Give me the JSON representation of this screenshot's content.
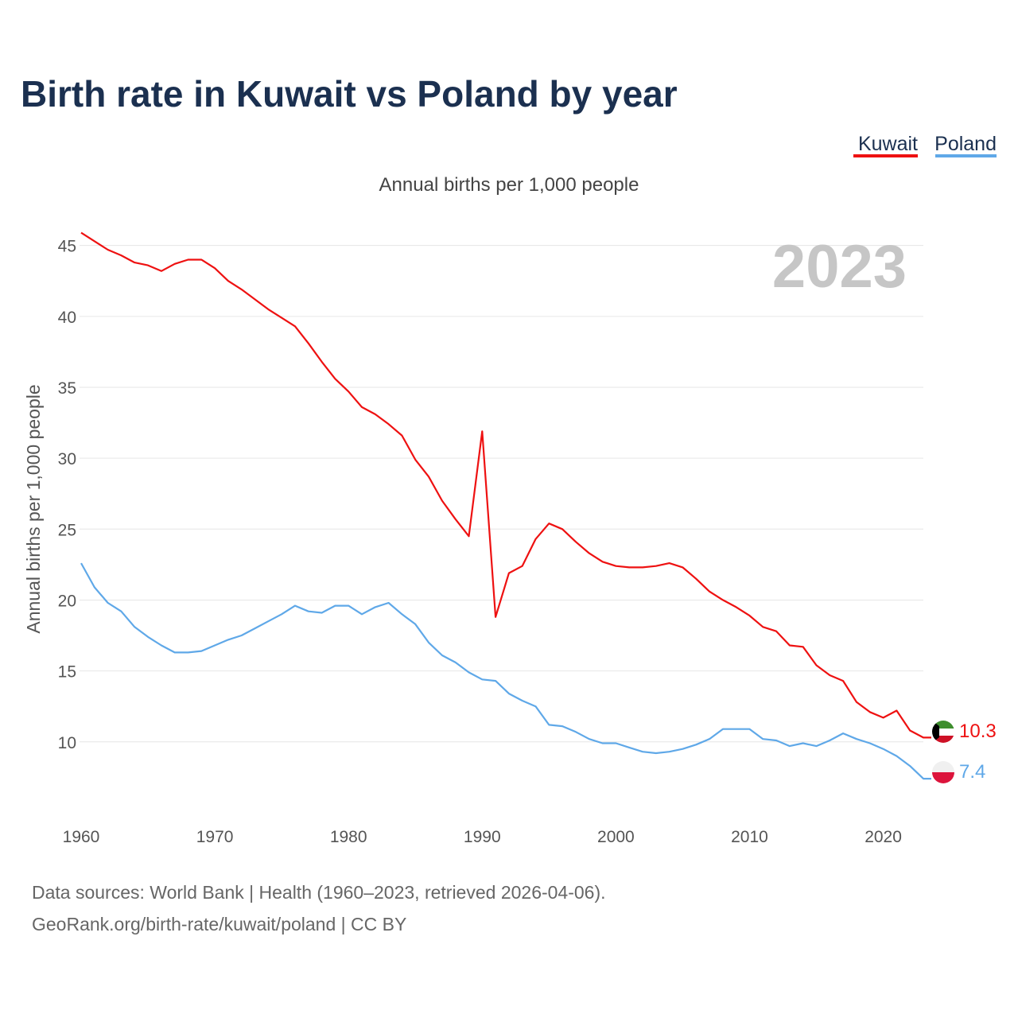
{
  "title": "Birth rate in Kuwait vs Poland by year",
  "subtitle": "Annual births per 1,000 people",
  "year_label": "2023",
  "source_line_1": "Data sources: World Bank | Health (1960–2023, retrieved 2026-04-06).",
  "source_line_2": "GeoRank.org/birth-rate/kuwait/poland | CC BY",
  "legend": [
    {
      "name": "Kuwait",
      "color": "#ee1111"
    },
    {
      "name": "Poland",
      "color": "#5fa8e8"
    }
  ],
  "end_labels": {
    "kuwait": "10.3",
    "poland": "7.4"
  },
  "flags": {
    "kuwait": "kuwait-flag",
    "poland": "poland-flag"
  },
  "chart_data": {
    "type": "line",
    "title": "Birth rate in Kuwait vs Poland by year",
    "xlabel": "",
    "ylabel": "Annual births per 1,000 people",
    "xlim": [
      1960,
      2023
    ],
    "ylim": [
      5.5,
      47
    ],
    "x_ticks": [
      1960,
      1970,
      1980,
      1990,
      2000,
      2010,
      2020
    ],
    "y_ticks": [
      10,
      15,
      20,
      25,
      30,
      35,
      40,
      45
    ],
    "grid": true,
    "legend_position": "top-right",
    "x": [
      1960,
      1961,
      1962,
      1963,
      1964,
      1965,
      1966,
      1967,
      1968,
      1969,
      1970,
      1971,
      1972,
      1973,
      1974,
      1975,
      1976,
      1977,
      1978,
      1979,
      1980,
      1981,
      1982,
      1983,
      1984,
      1985,
      1986,
      1987,
      1988,
      1989,
      1990,
      1991,
      1992,
      1993,
      1994,
      1995,
      1996,
      1997,
      1998,
      1999,
      2000,
      2001,
      2002,
      2003,
      2004,
      2005,
      2006,
      2007,
      2008,
      2009,
      2010,
      2011,
      2012,
      2013,
      2014,
      2015,
      2016,
      2017,
      2018,
      2019,
      2020,
      2021,
      2022,
      2023
    ],
    "series": [
      {
        "name": "Kuwait",
        "color": "#ee1111",
        "values": [
          45.9,
          45.3,
          44.7,
          44.3,
          43.8,
          43.6,
          43.2,
          43.7,
          44.0,
          44.0,
          43.4,
          42.5,
          41.9,
          41.2,
          40.5,
          39.9,
          39.3,
          38.1,
          36.8,
          35.6,
          34.7,
          33.6,
          33.1,
          32.4,
          31.6,
          29.9,
          28.7,
          27.0,
          25.7,
          24.5,
          31.9,
          18.8,
          21.9,
          22.4,
          24.3,
          25.4,
          25.0,
          24.1,
          23.3,
          22.7,
          22.4,
          22.3,
          22.3,
          22.4,
          22.6,
          22.3,
          21.5,
          20.6,
          20.0,
          19.5,
          18.9,
          18.1,
          17.8,
          16.8,
          16.7,
          15.4,
          14.7,
          14.3,
          12.8,
          12.1,
          11.7,
          12.2,
          10.8,
          10.3
        ]
      },
      {
        "name": "Poland",
        "color": "#5fa8e8",
        "values": [
          22.6,
          20.9,
          19.8,
          19.2,
          18.1,
          17.4,
          16.8,
          16.3,
          16.3,
          16.4,
          16.8,
          17.2,
          17.5,
          18.0,
          18.5,
          19.0,
          19.6,
          19.2,
          19.1,
          19.6,
          19.6,
          19.0,
          19.5,
          19.8,
          19.0,
          18.3,
          17.0,
          16.1,
          15.6,
          14.9,
          14.4,
          14.3,
          13.4,
          12.9,
          12.5,
          11.2,
          11.1,
          10.7,
          10.2,
          9.9,
          9.9,
          9.6,
          9.3,
          9.2,
          9.3,
          9.5,
          9.8,
          10.2,
          10.9,
          10.9,
          10.9,
          10.2,
          10.1,
          9.7,
          9.9,
          9.7,
          10.1,
          10.6,
          10.2,
          9.9,
          9.5,
          9.0,
          8.3,
          7.4
        ]
      }
    ]
  }
}
